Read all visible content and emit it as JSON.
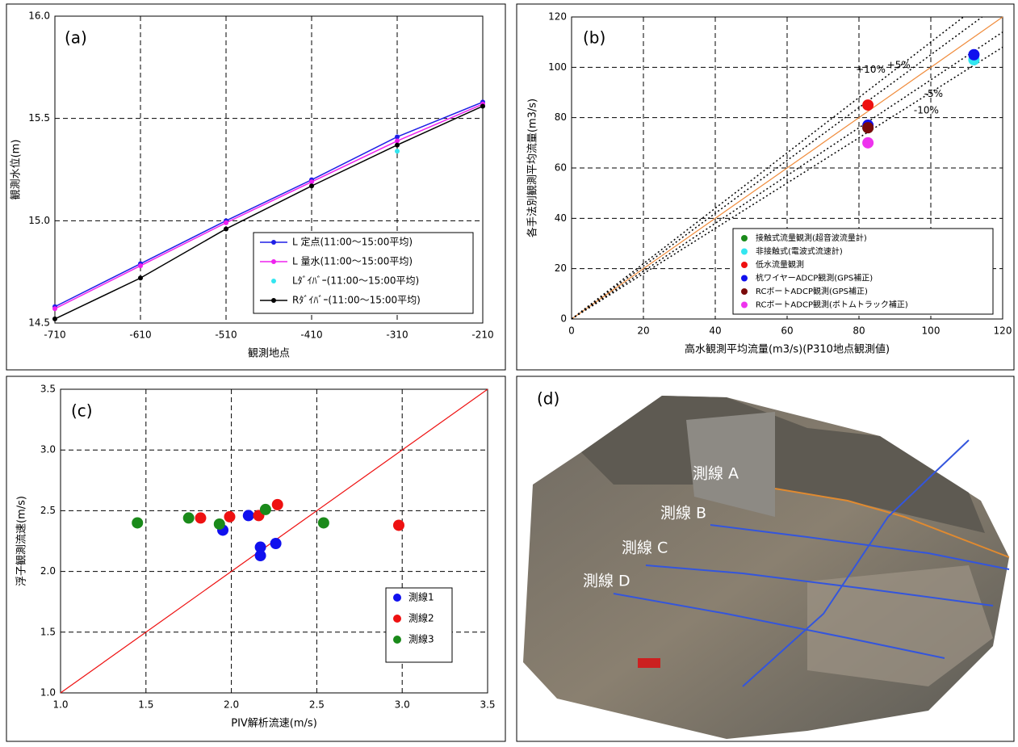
{
  "chart_data": [
    {
      "type": "line",
      "label": "(a)",
      "x_label": "観測地点",
      "y_label": "観測水位(m)",
      "x": [
        -710,
        -610,
        -510,
        -410,
        -310,
        -210
      ],
      "xlim": [
        -710,
        -210
      ],
      "xticks": [
        -710,
        -610,
        -510,
        -410,
        -310,
        -210
      ],
      "ylim": [
        14.5,
        16.0
      ],
      "yticks": [
        14.5,
        {
          "value": 15.0,
          "label": "15.0"
        },
        15.5,
        {
          "value": 16.0,
          "label": "16.0"
        }
      ],
      "grid": true,
      "legend": "lower right",
      "series": [
        {
          "name": "L 定点(11:00～15:00平均)",
          "color": "#1f1fe6",
          "values": [
            14.58,
            14.79,
            15.0,
            15.2,
            15.41,
            15.58
          ]
        },
        {
          "name": "L 量水(11:00～15:00平均)",
          "color": "#ee22ee",
          "values": [
            14.57,
            14.78,
            14.99,
            15.19,
            15.39,
            15.57
          ]
        },
        {
          "name": "Lﾀﾞｲﾊﾞｰ(11:00～15:00平均)",
          "color": "#33e6f0",
          "line": false,
          "values": [
            null,
            null,
            null,
            null,
            15.34,
            null
          ]
        },
        {
          "name": "Rﾀﾞｲﾊﾞｰ(11:00～15:00平均)",
          "color": "#000000",
          "values": [
            14.52,
            14.72,
            14.96,
            15.17,
            15.37,
            15.56
          ]
        }
      ]
    },
    {
      "type": "scatter",
      "label": "(b)",
      "x_label": "高水観測平均流量(m3/s)(P310地点観測値)",
      "y_label": "各手法別観測平均流量(m3/s)",
      "xlim": [
        0,
        120
      ],
      "xticks": [
        0,
        20,
        40,
        60,
        80,
        100,
        120
      ],
      "ylim": [
        0,
        120
      ],
      "yticks": [
        0,
        20,
        40,
        60,
        80,
        100,
        120
      ],
      "grid": true,
      "legend": "lower right",
      "reference_lines": [
        {
          "slope": 1,
          "color": "#f08c3c"
        },
        {
          "label": "+10%",
          "slope": 1.1,
          "color": "#000000",
          "style": "dotted"
        },
        {
          "label": "+5%",
          "slope": 1.05,
          "color": "#000000",
          "style": "dotted"
        },
        {
          "label": "-5%",
          "slope": 0.95,
          "color": "#000000",
          "style": "dotted"
        },
        {
          "label": "-10%",
          "slope": 0.9,
          "color": "#000000",
          "style": "dotted"
        }
      ],
      "series": [
        {
          "name": "接触式流量観測(超音波流量計)",
          "color": "#1a8a1a",
          "x": [
            82.5
          ],
          "values": [
            76
          ]
        },
        {
          "name": "非接触式(電波式流速計)",
          "color": "#33e6f0",
          "x": [
            112
          ],
          "values": [
            103
          ]
        },
        {
          "name": "低水流量観測",
          "color": "#ee1111",
          "x": [
            82.5
          ],
          "values": [
            85
          ]
        },
        {
          "name": "杭ワイヤーADCP観測(GPS補正)",
          "color": "#1010ee",
          "x": [
            82.5,
            112
          ],
          "values": [
            77,
            105
          ]
        },
        {
          "name": "RCボートADCP観測(GPS補正)",
          "color": "#7a0a0a",
          "x": [
            82.5
          ],
          "values": [
            76
          ]
        },
        {
          "name": "RCボートADCP観測(ボトムトラック補正)",
          "color": "#ee33ee",
          "x": [
            82.5
          ],
          "values": [
            70
          ]
        }
      ]
    },
    {
      "type": "scatter",
      "label": "(c)",
      "x_label": "PIV解析流速(m/s)",
      "y_label": "浮子観測流速(m/s)",
      "xlim": [
        1.0,
        3.5
      ],
      "xticks": [
        {
          "value": 1.0,
          "label": "1.0"
        },
        1.5,
        {
          "value": 2.0,
          "label": "2.0"
        },
        2.5,
        {
          "value": 3.0,
          "label": "3.0"
        },
        3.5
      ],
      "ylim": [
        1.0,
        3.5
      ],
      "yticks": [
        {
          "value": 1.0,
          "label": "1.0"
        },
        1.5,
        {
          "value": 2.0,
          "label": "2.0"
        },
        2.5,
        {
          "value": 3.0,
          "label": "3.0"
        },
        3.5
      ],
      "grid": true,
      "legend": "lower right",
      "reference_lines": [
        {
          "slope": 1,
          "color": "#ee1111"
        }
      ],
      "series": [
        {
          "name": "測線1",
          "color": "#1010ee",
          "x": [
            1.95,
            2.1,
            2.17,
            2.17,
            2.26
          ],
          "values": [
            2.34,
            2.46,
            2.2,
            2.13,
            2.23
          ]
        },
        {
          "name": "測線2",
          "color": "#ee1111",
          "x": [
            1.82,
            1.99,
            2.16,
            2.27,
            2.98
          ],
          "values": [
            2.44,
            2.45,
            2.46,
            2.55,
            2.38
          ]
        },
        {
          "name": "測線3",
          "color": "#1a8a1a",
          "x": [
            1.45,
            1.75,
            1.93,
            2.2,
            2.54
          ],
          "values": [
            2.4,
            2.44,
            2.39,
            2.51,
            2.4
          ]
        }
      ]
    }
  ],
  "photo": {
    "label": "(d)",
    "lines": [
      "測線 A",
      "測線 B",
      "測線 C",
      "測線 D"
    ]
  }
}
